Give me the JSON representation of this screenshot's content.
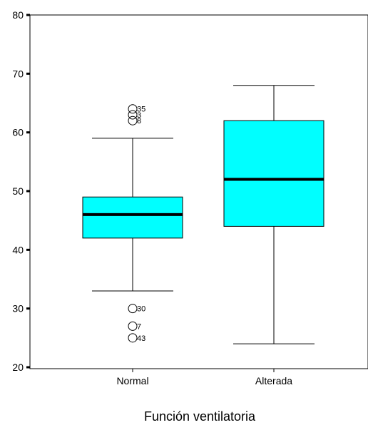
{
  "chart_data": {
    "type": "box",
    "title": "",
    "xlabel": "Función ventilatoria",
    "ylabel": "",
    "ylim": [
      20,
      80
    ],
    "yticks": [
      20,
      30,
      40,
      50,
      60,
      70,
      80
    ],
    "grid": false,
    "legend": "none",
    "box_color": "#00FFFF",
    "categories": [
      "Normal",
      "Alterada"
    ],
    "boxes": [
      {
        "category": "Normal",
        "whisker_low": 33,
        "q1": 42,
        "median": 46,
        "q3": 49,
        "whisker_high": 59,
        "outliers": [
          {
            "value": 64,
            "label": "35"
          },
          {
            "value": 63,
            "label": "3"
          },
          {
            "value": 62,
            "label": "8"
          },
          {
            "value": 30,
            "label": "30"
          },
          {
            "value": 27,
            "label": "7"
          },
          {
            "value": 25,
            "label": "43"
          }
        ]
      },
      {
        "category": "Alterada",
        "whisker_low": 24,
        "q1": 44,
        "median": 52,
        "q3": 62,
        "whisker_high": 68,
        "outliers": []
      }
    ]
  }
}
